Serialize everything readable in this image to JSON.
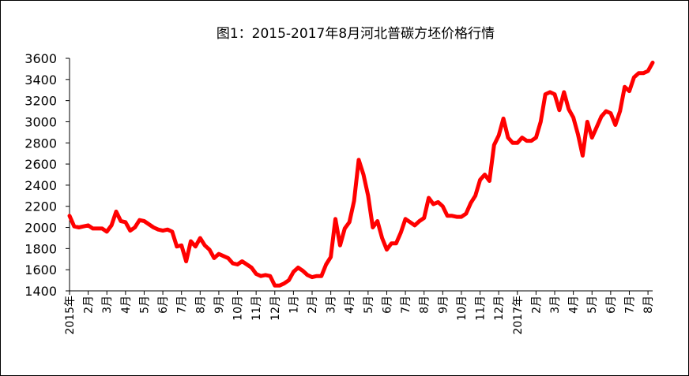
{
  "chart_data": {
    "type": "line",
    "title": "图1：2015-2017年8月河北普碳方坯价格行情",
    "categories": [
      "2015年",
      null,
      null,
      null,
      "2月",
      null,
      null,
      null,
      "3月",
      null,
      null,
      null,
      "4月",
      null,
      null,
      null,
      "5月",
      null,
      null,
      null,
      "6月",
      null,
      null,
      null,
      "7月",
      null,
      null,
      null,
      "8月",
      null,
      null,
      null,
      "9月",
      null,
      null,
      null,
      "10月",
      null,
      null,
      null,
      "11月",
      null,
      null,
      null,
      "12月",
      null,
      null,
      null,
      "1月",
      null,
      null,
      null,
      "2月",
      null,
      null,
      null,
      "3月",
      null,
      null,
      null,
      "4月",
      null,
      null,
      null,
      "5月",
      null,
      null,
      null,
      "6月",
      null,
      null,
      null,
      "7月",
      null,
      null,
      null,
      "8月",
      null,
      null,
      null,
      "9月",
      null,
      null,
      null,
      "10月",
      null,
      null,
      null,
      "11月",
      null,
      null,
      null,
      "12月",
      null,
      null,
      null,
      "2017年",
      null,
      null,
      null,
      "2月",
      null,
      null,
      null,
      "3月",
      null,
      null,
      null,
      "4月",
      null,
      null,
      null,
      "5月",
      null,
      null,
      null,
      "6月",
      null,
      null,
      null,
      "7月",
      null,
      null,
      null,
      "8月",
      null
    ],
    "values": [
      2110,
      2010,
      2000,
      2010,
      2020,
      1990,
      1990,
      1990,
      1960,
      2020,
      2150,
      2060,
      2050,
      1970,
      2000,
      2070,
      2060,
      2030,
      2000,
      1980,
      1970,
      1980,
      1960,
      1820,
      1830,
      1680,
      1870,
      1820,
      1900,
      1830,
      1790,
      1710,
      1750,
      1730,
      1710,
      1660,
      1650,
      1680,
      1650,
      1620,
      1560,
      1540,
      1550,
      1540,
      1450,
      1450,
      1470,
      1500,
      1580,
      1620,
      1590,
      1550,
      1530,
      1540,
      1540,
      1650,
      1720,
      2080,
      1830,
      1990,
      2050,
      2250,
      2640,
      2500,
      2300,
      2000,
      2060,
      1900,
      1790,
      1850,
      1850,
      1950,
      2080,
      2050,
      2020,
      2060,
      2090,
      2280,
      2220,
      2240,
      2200,
      2110,
      2110,
      2100,
      2100,
      2130,
      2230,
      2300,
      2450,
      2500,
      2440,
      2780,
      2870,
      3030,
      2850,
      2800,
      2800,
      2850,
      2820,
      2820,
      2850,
      3000,
      3260,
      3280,
      3260,
      3110,
      3280,
      3120,
      3040,
      2880,
      2680,
      3000,
      2850,
      2950,
      3050,
      3100,
      3080,
      2970,
      3100,
      3330,
      3290,
      3420,
      3460,
      3460,
      3480,
      3560
    ],
    "color": "#ff0000",
    "ylim": [
      1400,
      3600
    ],
    "yticks": [
      1400,
      1600,
      1800,
      2000,
      2200,
      2400,
      2600,
      2800,
      3000,
      3200,
      3400,
      3600
    ],
    "grid": false
  }
}
